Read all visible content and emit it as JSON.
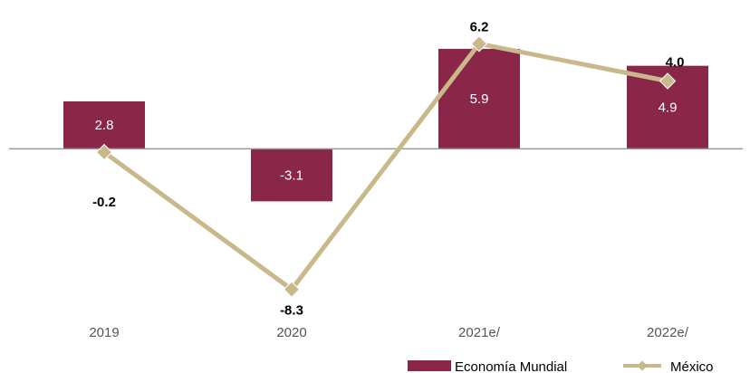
{
  "chart_data": {
    "type": "bar",
    "categories": [
      "2019",
      "2020",
      "2021e/",
      "2022e/"
    ],
    "series": [
      {
        "name": "Economía Mundial",
        "type": "bar",
        "values": [
          2.8,
          -3.1,
          5.9,
          4.9
        ],
        "color": "#8a2748"
      },
      {
        "name": "México",
        "type": "line",
        "values": [
          -0.2,
          -8.3,
          6.2,
          4.0
        ],
        "color": "#c8b88a"
      }
    ],
    "ylim": [
      -9.6,
      7.5
    ],
    "grid": false,
    "legend_position": "bottom-right",
    "axis_color": "#999999"
  }
}
